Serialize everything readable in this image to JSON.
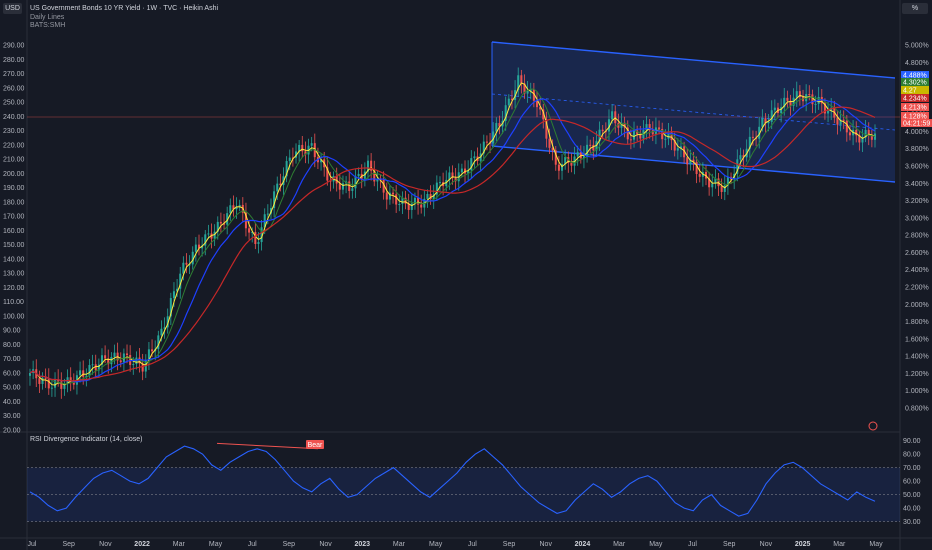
{
  "header": {
    "title": "US Government Bonds 10 YR Yield · 1W · TVC · Heikin Ashi",
    "line2": "Daily Lines",
    "line3": "BATS:SMH",
    "left_button": "USD",
    "right_button": "%"
  },
  "colors": {
    "background": "#161a25",
    "up": "#26a69a",
    "down": "#ef5350",
    "channel": "#2962ff",
    "ma_fast": "#ffeb3b",
    "ma_mid": "#2e7d32",
    "ma_blue": "#1e40ff",
    "ma_red": "#c62828",
    "rsi": "#2962ff"
  },
  "chart_data": [
    {
      "type": "candlestick",
      "title": "US Government Bonds 10 YR Yield · 1W · TVC · Heikin Ashi",
      "left_axis": {
        "unit": "USD",
        "ticks": [
          "290.00",
          "280.00",
          "270.00",
          "260.00",
          "250.00",
          "240.00",
          "230.00",
          "220.00",
          "210.00",
          "200.00",
          "190.00",
          "180.00",
          "170.00",
          "160.00",
          "150.00",
          "140.00",
          "130.00",
          "120.00",
          "110.00",
          "100.00",
          "90.00",
          "80.00",
          "70.00",
          "60.00",
          "50.00",
          "40.00",
          "30.00",
          "20.00"
        ],
        "ylim": [
          20,
          295
        ]
      },
      "right_axis": {
        "unit": "%",
        "ticks": [
          "5.000%",
          "4.800%",
          "4.600%",
          "4.400%",
          "4.200%",
          "4.000%",
          "3.800%",
          "3.600%",
          "3.400%",
          "3.200%",
          "3.000%",
          "2.800%",
          "2.600%",
          "2.400%",
          "2.200%",
          "2.000%",
          "1.800%",
          "1.600%",
          "1.400%",
          "1.200%",
          "1.000%",
          "0.800%"
        ]
      },
      "x_ticks": [
        "Jul",
        "Sep",
        "Nov",
        "2022",
        "Mar",
        "May",
        "Jul",
        "Sep",
        "Nov",
        "2023",
        "Mar",
        "May",
        "Jul",
        "Sep",
        "Nov",
        "2024",
        "Mar",
        "May",
        "Jul",
        "Sep",
        "Nov",
        "2025",
        "Mar",
        "May"
      ],
      "price_labels": [
        {
          "text": "4.488%",
          "color": "#2962ff"
        },
        {
          "text": "4.302%",
          "color": "#2e7d32"
        },
        {
          "text": "4.27",
          "color": "#c9b800"
        },
        {
          "text": "4.234%",
          "color": "#c62828"
        },
        {
          "text": "4.213%",
          "color": "#ef5350"
        },
        {
          "text": "4.128%",
          "color": "#ef5350"
        },
        {
          "text": "04:21:59",
          "color": "#ef5350"
        }
      ],
      "series_smh": [
        {
          "x": "Jul",
          "y": 60
        },
        {
          "x": "Aug",
          "y": 52
        },
        {
          "x": "Sep",
          "y": 53
        },
        {
          "x": "Oct",
          "y": 61
        },
        {
          "x": "Nov",
          "y": 70
        },
        {
          "x": "Dec",
          "y": 71
        },
        {
          "x": "2022",
          "y": 65
        },
        {
          "x": "Feb",
          "y": 88
        },
        {
          "x": "Mar",
          "y": 130
        },
        {
          "x": "Apr",
          "y": 150
        },
        {
          "x": "May",
          "y": 162
        },
        {
          "x": "Jun",
          "y": 180
        },
        {
          "x": "Jul",
          "y": 150
        },
        {
          "x": "Aug",
          "y": 185
        },
        {
          "x": "Sep",
          "y": 215
        },
        {
          "x": "Oct",
          "y": 218
        },
        {
          "x": "Nov",
          "y": 195
        },
        {
          "x": "Dec",
          "y": 190
        },
        {
          "x": "2023",
          "y": 205
        },
        {
          "x": "Feb",
          "y": 185
        },
        {
          "x": "Mar",
          "y": 178
        },
        {
          "x": "Apr",
          "y": 180
        },
        {
          "x": "May",
          "y": 195
        },
        {
          "x": "Jun",
          "y": 200
        },
        {
          "x": "Jul",
          "y": 215
        },
        {
          "x": "Aug",
          "y": 235
        },
        {
          "x": "Sep",
          "y": 265
        },
        {
          "x": "Oct",
          "y": 250
        },
        {
          "x": "Nov",
          "y": 205
        },
        {
          "x": "Dec",
          "y": 210
        },
        {
          "x": "2024",
          "y": 220
        },
        {
          "x": "Feb",
          "y": 240
        },
        {
          "x": "Mar",
          "y": 225
        },
        {
          "x": "Apr",
          "y": 232
        },
        {
          "x": "May",
          "y": 225
        },
        {
          "x": "Jun",
          "y": 210
        },
        {
          "x": "Jul",
          "y": 195
        },
        {
          "x": "Aug",
          "y": 190
        },
        {
          "x": "Sep",
          "y": 215
        },
        {
          "x": "Oct",
          "y": 235
        },
        {
          "x": "Nov",
          "y": 248
        },
        {
          "x": "Dec",
          "y": 255
        },
        {
          "x": "2025",
          "y": 250
        },
        {
          "x": "Feb",
          "y": 238
        },
        {
          "x": "Mar",
          "y": 225
        },
        {
          "x": "Apr",
          "y": 228
        }
      ],
      "channel": {
        "upper": [
          [
            "Jul 2023",
            5.05
          ],
          [
            "May 2025",
            4.8
          ]
        ],
        "lower": [
          [
            "Jul 2023",
            3.95
          ],
          [
            "May 2025",
            3.5
          ]
        ]
      }
    },
    {
      "type": "line",
      "title": "RSI Divergence Indicator (14, close)",
      "ticks": [
        "90.00",
        "80.00",
        "70.00",
        "60.00",
        "50.00",
        "40.00",
        "30.00"
      ],
      "ylim": [
        20,
        92
      ],
      "band": [
        30,
        70
      ],
      "annotation": "Bear",
      "values": [
        52,
        48,
        42,
        38,
        40,
        48,
        55,
        62,
        66,
        68,
        64,
        60,
        58,
        62,
        70,
        78,
        82,
        86,
        84,
        80,
        72,
        68,
        74,
        78,
        82,
        84,
        82,
        76,
        68,
        60,
        55,
        52,
        58,
        62,
        54,
        48,
        50,
        56,
        62,
        66,
        70,
        64,
        58,
        52,
        48,
        54,
        60,
        66,
        74,
        80,
        84,
        78,
        72,
        64,
        56,
        50,
        44,
        40,
        36,
        38,
        46,
        52,
        58,
        54,
        48,
        52,
        58,
        62,
        64,
        60,
        52,
        44,
        40,
        38,
        46,
        50,
        42,
        38,
        34,
        36,
        46,
        58,
        66,
        72,
        74,
        70,
        64,
        58,
        54,
        50,
        46,
        52,
        48,
        45
      ]
    }
  ]
}
